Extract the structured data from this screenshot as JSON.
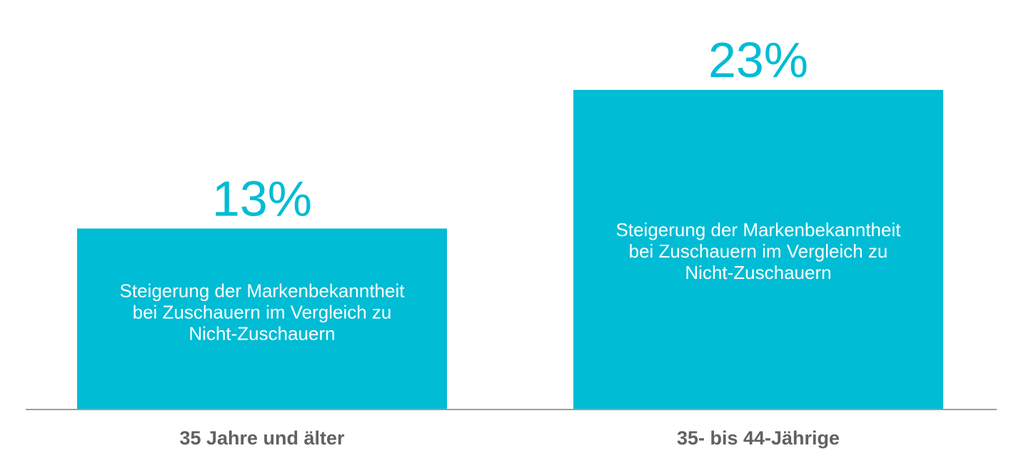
{
  "chart_data": {
    "type": "bar",
    "categories": [
      "35 Jahre und älter",
      "35- bis 44-Jährige"
    ],
    "values": [
      13,
      23
    ],
    "value_labels": [
      "13%",
      "23%"
    ],
    "bar_text": [
      [
        "Steigerung der Markenbekanntheit",
        "bei Zuschauern im Vergleich zu",
        "Nicht-Zuschauern"
      ],
      [
        "Steigerung der Markenbekanntheit",
        "bei Zuschauern im Vergleich zu",
        "Nicht-Zuschauern"
      ]
    ],
    "ylim": [
      0,
      23
    ],
    "grid": false,
    "legend": "none",
    "colors": {
      "bar": "#00bcd4",
      "value_label": "#00bcd4",
      "bar_text": "#ffffff",
      "category_label": "#616161",
      "baseline": "#9e9e9e"
    }
  }
}
